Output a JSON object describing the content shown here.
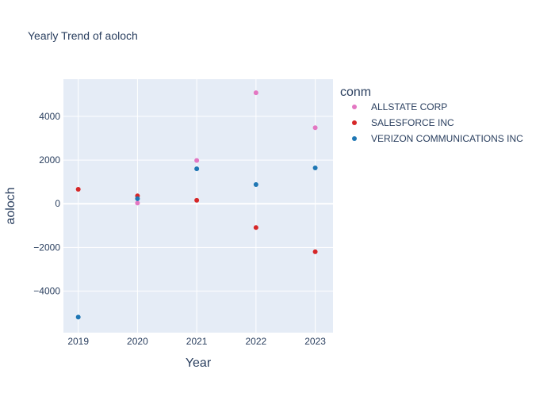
{
  "chart_data": {
    "type": "scatter",
    "title": "Yearly Trend of aoloch",
    "xlabel": "Year",
    "ylabel": "aoloch",
    "x": [
      2019,
      2020,
      2021,
      2022,
      2023
    ],
    "xlim": [
      2018.75,
      2023.3
    ],
    "ylim": [
      -5900,
      5700
    ],
    "yticks": [
      -4000,
      -2000,
      0,
      2000,
      4000
    ],
    "grid": true,
    "legend_title": "conm",
    "legend_position": "right",
    "series": [
      {
        "name": "ALLSTATE CORP",
        "color": "#e377c2",
        "x": [
          2020,
          2021,
          2022,
          2023
        ],
        "values": [
          30,
          1980,
          5080,
          3480
        ]
      },
      {
        "name": "SALESFORCE INC",
        "color": "#d62728",
        "x": [
          2019,
          2020,
          2021,
          2022,
          2023
        ],
        "values": [
          660,
          360,
          160,
          -1090,
          -2200
        ]
      },
      {
        "name": "VERIZON COMMUNICATIONS INC",
        "color": "#1f77b4",
        "x": [
          2019,
          2020,
          2021,
          2022,
          2023
        ],
        "values": [
          -5190,
          230,
          1600,
          880,
          1640
        ]
      }
    ]
  }
}
